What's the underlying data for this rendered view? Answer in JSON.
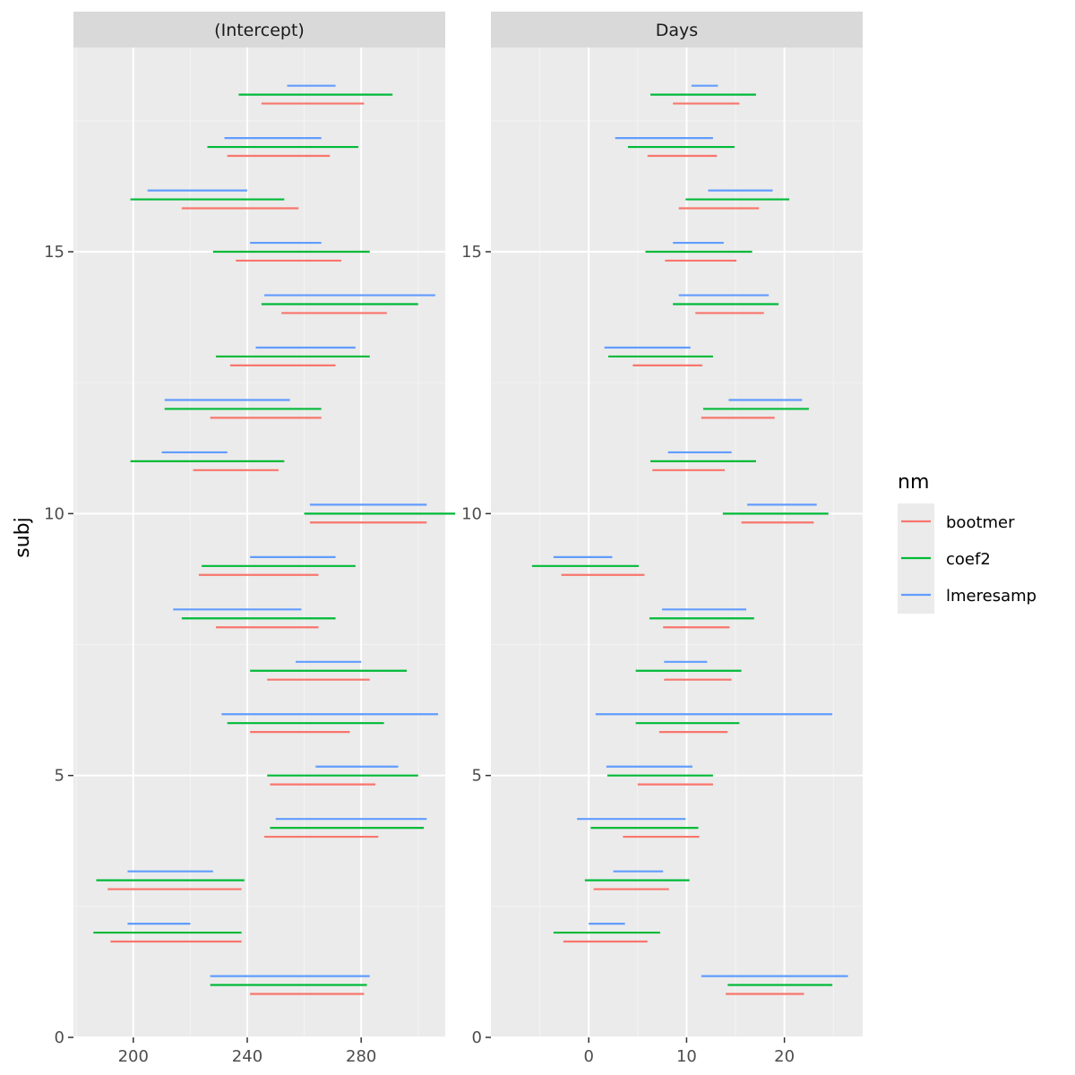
{
  "chart_data": {
    "type": "interval",
    "ylabel": "subj",
    "y_ticks": [
      0,
      5,
      10,
      15
    ],
    "ylim": [
      0,
      18.9
    ],
    "legend": {
      "title": "nm",
      "position": "right",
      "entries": [
        {
          "name": "bootmer",
          "color": "#F8766D"
        },
        {
          "name": "coef2",
          "color": "#00BA38"
        },
        {
          "name": "lmeresamp",
          "color": "#619CFF"
        }
      ]
    },
    "series_offsets": {
      "bootmer": -0.17,
      "coef2": 0.0,
      "lmeresamp": 0.17
    },
    "panels": [
      {
        "title": "(Intercept)",
        "xlim": [
          179,
          309.5
        ],
        "x_ticks": [
          200,
          240,
          280
        ],
        "intervals": {
          "bootmer": [
            [
              241,
              281
            ],
            [
              192,
              238
            ],
            [
              191,
              238
            ],
            [
              246,
              286
            ],
            [
              248,
              285
            ],
            [
              241,
              276
            ],
            [
              247,
              283
            ],
            [
              229,
              265
            ],
            [
              223,
              265
            ],
            [
              262,
              303
            ],
            [
              221,
              251
            ],
            [
              227,
              266
            ],
            [
              234,
              271
            ],
            [
              252,
              289
            ],
            [
              236,
              273
            ],
            [
              217,
              258
            ],
            [
              233,
              269
            ],
            [
              245,
              281
            ]
          ],
          "coef2": [
            [
              227,
              282
            ],
            [
              186,
              238
            ],
            [
              187,
              239
            ],
            [
              248,
              302
            ],
            [
              247,
              300
            ],
            [
              233,
              288
            ],
            [
              241,
              296
            ],
            [
              217,
              271
            ],
            [
              224,
              278
            ],
            [
              260,
              313
            ],
            [
              199,
              253
            ],
            [
              211,
              266
            ],
            [
              229,
              283
            ],
            [
              245,
              300
            ],
            [
              228,
              283
            ],
            [
              199,
              253
            ],
            [
              226,
              279
            ],
            [
              237,
              291
            ]
          ],
          "lmeresamp": [
            [
              227,
              283
            ],
            [
              198,
              220
            ],
            [
              198,
              228
            ],
            [
              250,
              303
            ],
            [
              264,
              293
            ],
            [
              231,
              307
            ],
            [
              257,
              280
            ],
            [
              214,
              259
            ],
            [
              241,
              271
            ],
            [
              262,
              303
            ],
            [
              210,
              233
            ],
            [
              211,
              255
            ],
            [
              243,
              278
            ],
            [
              246,
              306
            ],
            [
              241,
              266
            ],
            [
              205,
              240
            ],
            [
              232,
              266
            ],
            [
              254,
              271
            ]
          ]
        }
      },
      {
        "title": "Days",
        "xlim": [
          -10,
          28
        ],
        "x_ticks": [
          0,
          10,
          20
        ],
        "intervals": {
          "bootmer": [
            [
              14,
              22
            ],
            [
              -2.6,
              6
            ],
            [
              0.5,
              8.2
            ],
            [
              3.5,
              11.3
            ],
            [
              5,
              12.7
            ],
            [
              7.2,
              14.2
            ],
            [
              7.7,
              14.6
            ],
            [
              7.6,
              14.4
            ],
            [
              -2.8,
              5.7
            ],
            [
              15.6,
              23
            ],
            [
              6.5,
              13.9
            ],
            [
              11.5,
              19
            ],
            [
              4.5,
              11.6
            ],
            [
              10.9,
              17.9
            ],
            [
              7.8,
              15.1
            ],
            [
              9.2,
              17.4
            ],
            [
              6,
              13.1
            ],
            [
              8.6,
              15.4
            ]
          ],
          "coef2": [
            [
              14.2,
              24.9
            ],
            [
              -3.6,
              7.3
            ],
            [
              -0.4,
              10.3
            ],
            [
              0.2,
              11.2
            ],
            [
              1.9,
              12.7
            ],
            [
              4.8,
              15.4
            ],
            [
              4.8,
              15.6
            ],
            [
              6.2,
              16.9
            ],
            [
              -5.8,
              5.1
            ],
            [
              13.7,
              24.5
            ],
            [
              6.3,
              17.1
            ],
            [
              11.7,
              22.5
            ],
            [
              2,
              12.7
            ],
            [
              8.6,
              19.4
            ],
            [
              5.8,
              16.7
            ],
            [
              9.9,
              20.5
            ],
            [
              4,
              14.9
            ],
            [
              6.3,
              17.1
            ]
          ],
          "lmeresamp": [
            [
              11.5,
              26.5
            ],
            [
              0,
              3.7
            ],
            [
              2.5,
              7.6
            ],
            [
              -1.2,
              9.9
            ],
            [
              1.8,
              10.6
            ],
            [
              0.7,
              24.9
            ],
            [
              7.7,
              12.1
            ],
            [
              7.5,
              16.1
            ],
            [
              -3.6,
              2.4
            ],
            [
              16.2,
              23.3
            ],
            [
              8.1,
              14.6
            ],
            [
              14.3,
              21.8
            ],
            [
              1.6,
              10.4
            ],
            [
              9.2,
              18.4
            ],
            [
              8.6,
              13.8
            ],
            [
              12.2,
              18.8
            ],
            [
              2.7,
              12.7
            ],
            [
              10.5,
              13.2
            ]
          ]
        }
      }
    ]
  }
}
